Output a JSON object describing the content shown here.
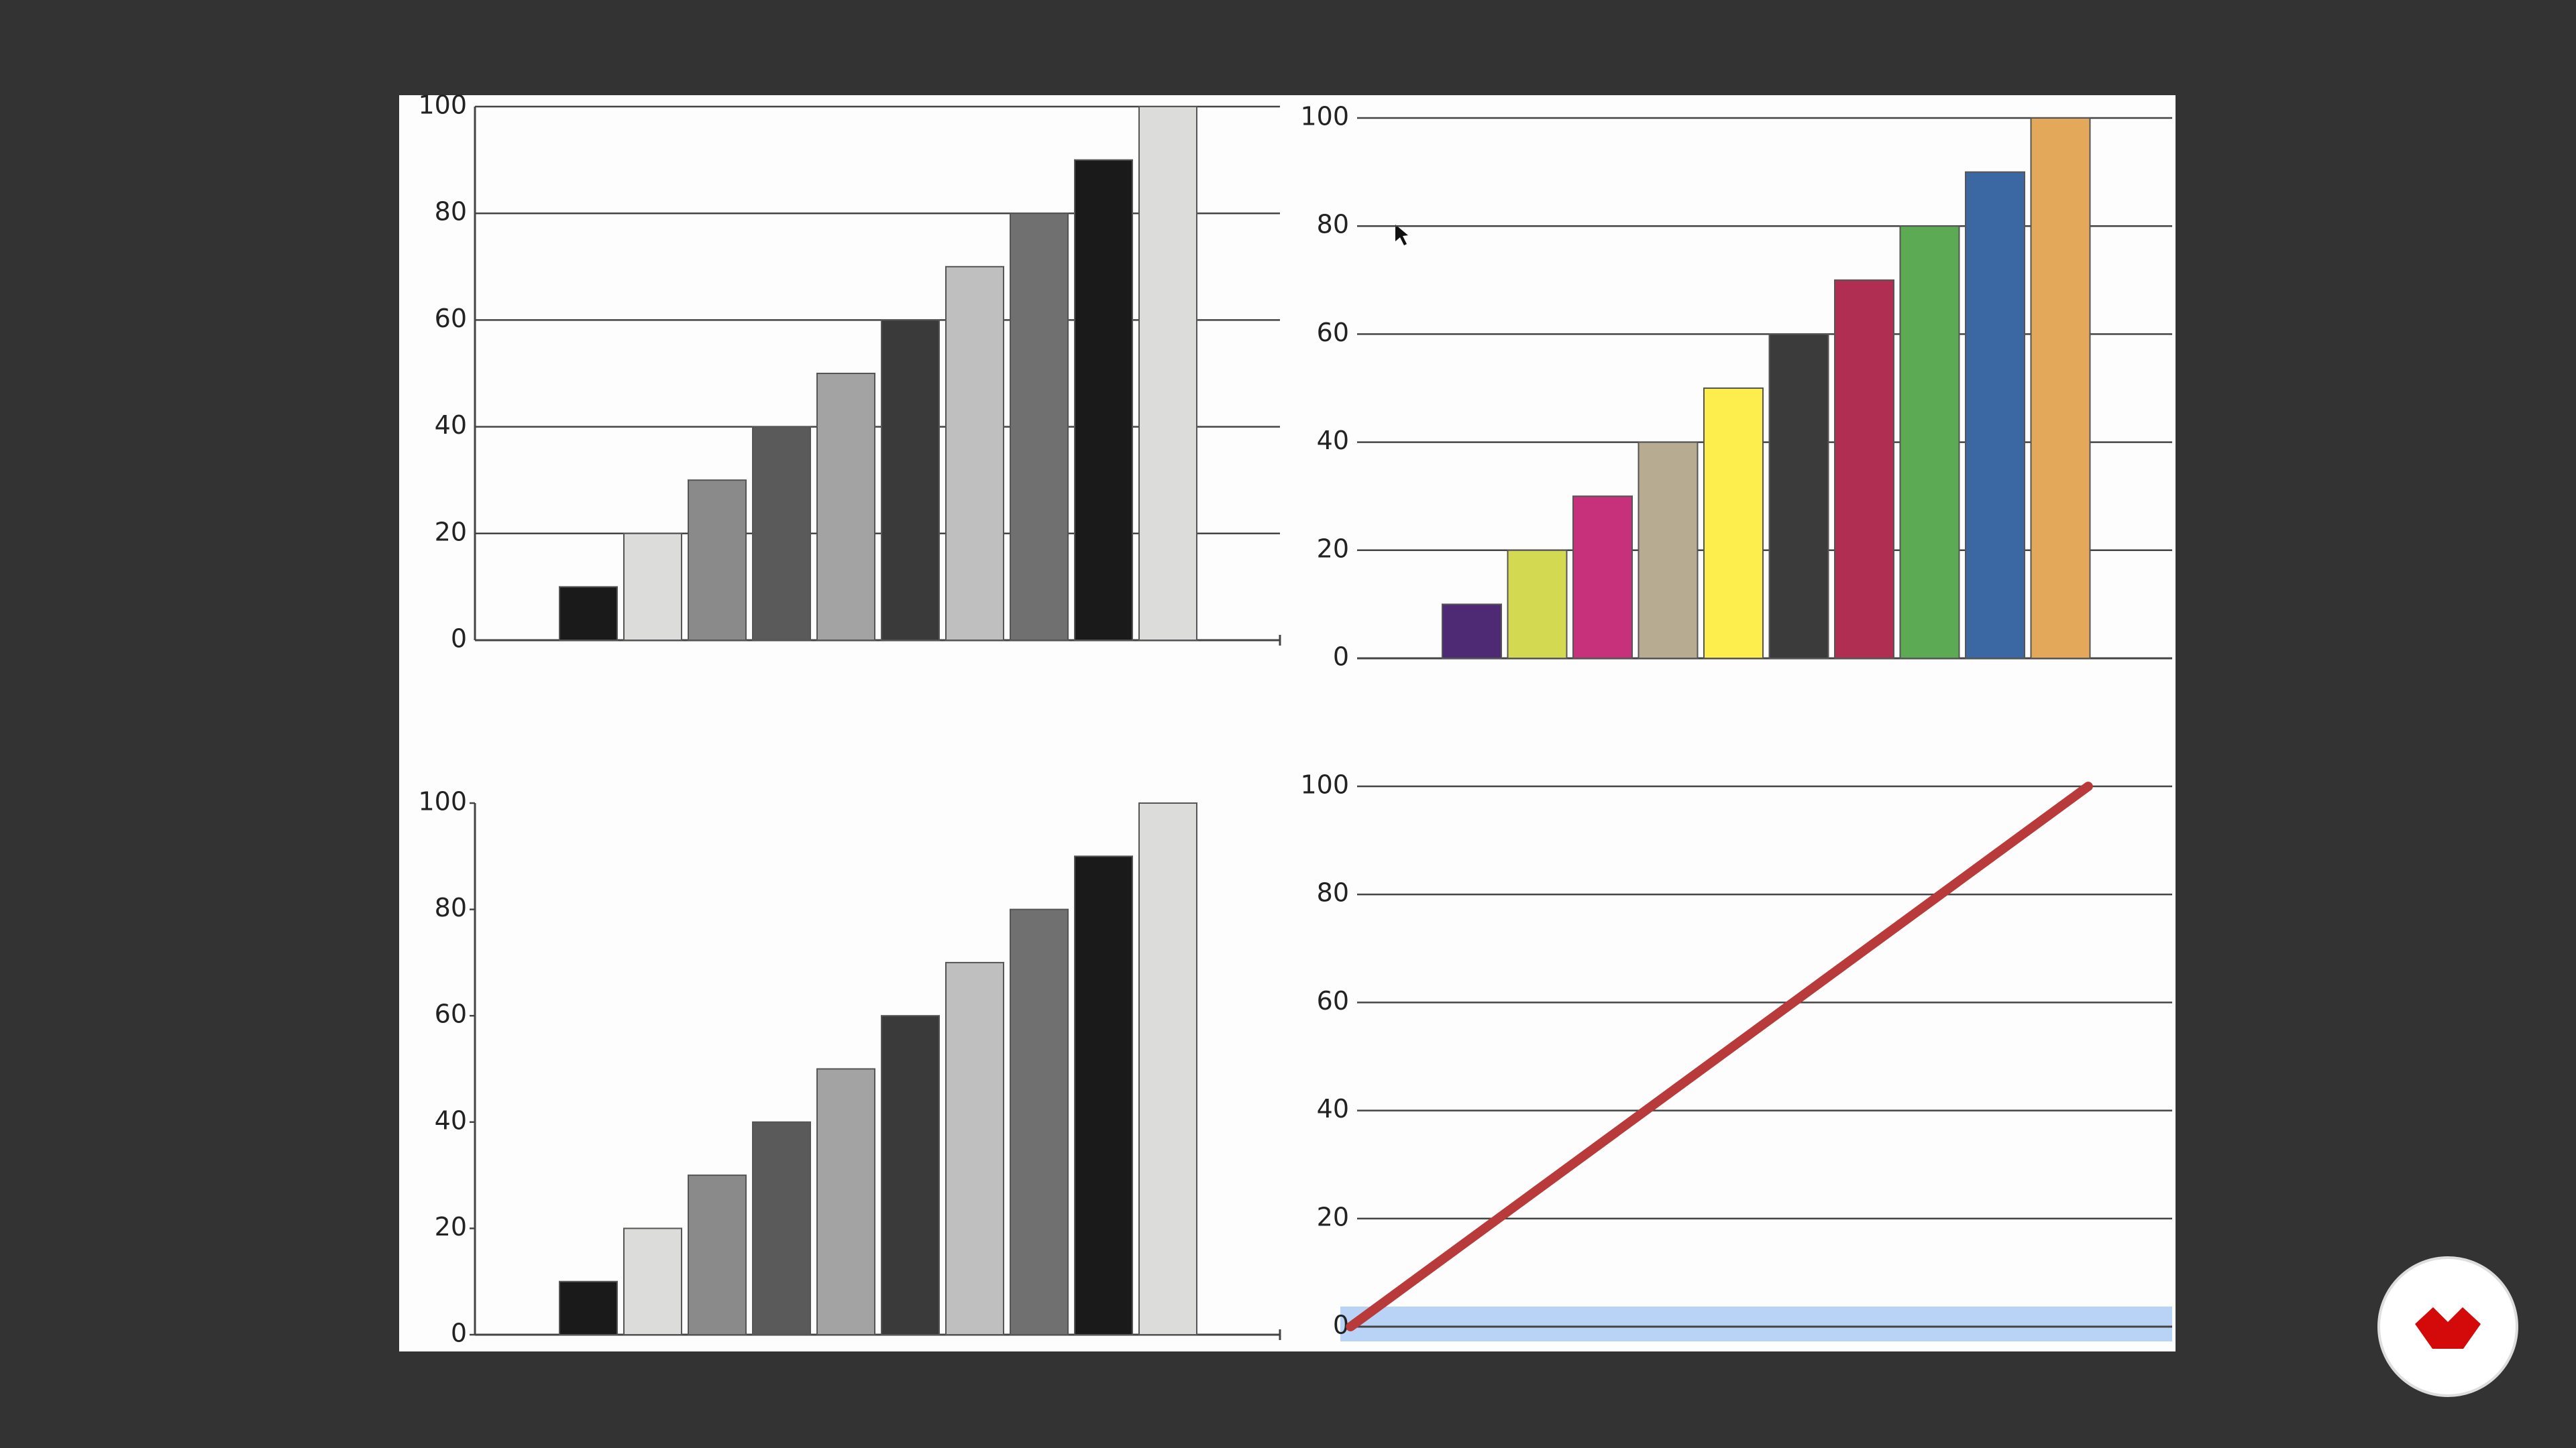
{
  "chart_data": [
    {
      "type": "bar",
      "categories": [
        null,
        null,
        null,
        null,
        null,
        null,
        null,
        null,
        null,
        null
      ],
      "values": [
        10,
        20,
        30,
        40,
        50,
        60,
        70,
        80,
        90,
        100
      ],
      "colors": [
        "#1a1a1a",
        "#dcdcda",
        "#8a8a8a",
        "#5a5a5a",
        "#a3a3a3",
        "#3a3a3a",
        "#bfbfbf",
        "#707070",
        "#1a1a1a",
        "#dcdcda"
      ],
      "ylim": [
        0,
        100
      ],
      "yticks": [
        0,
        20,
        40,
        60,
        80,
        100
      ],
      "grid": true
    },
    {
      "type": "bar",
      "categories": [
        null,
        null,
        null,
        null,
        null,
        null,
        null,
        null,
        null,
        null
      ],
      "values": [
        10,
        20,
        30,
        40,
        50,
        60,
        70,
        80,
        90,
        100
      ],
      "colors": [
        "#4e2a74",
        "#d3d951",
        "#c7317c",
        "#b7ab92",
        "#fdee4e",
        "#3b3b3b",
        "#b02e52",
        "#5daa54",
        "#3b68a3",
        "#e4a85a"
      ],
      "ylim": [
        0,
        100
      ],
      "yticks": [
        0,
        20,
        40,
        60,
        80,
        100
      ],
      "grid": true
    },
    {
      "type": "bar",
      "categories": [
        null,
        null,
        null,
        null,
        null,
        null,
        null,
        null,
        null,
        null
      ],
      "values": [
        10,
        20,
        30,
        40,
        50,
        60,
        70,
        80,
        90,
        100
      ],
      "colors": [
        "#1a1a1a",
        "#dcdcda",
        "#8a8a8a",
        "#5a5a5a",
        "#a3a3a3",
        "#3a3a3a",
        "#bfbfbf",
        "#707070",
        "#1a1a1a",
        "#dcdcda"
      ],
      "ylim": [
        0,
        100
      ],
      "yticks": [
        0,
        20,
        40,
        60,
        80,
        100
      ],
      "grid": false
    },
    {
      "type": "line",
      "categories": [
        null,
        null
      ],
      "values": [
        0,
        100
      ],
      "color": "#b83a3a",
      "ylim": [
        0,
        100
      ],
      "yticks": [
        0,
        20,
        40,
        60,
        80,
        100
      ],
      "grid": true
    }
  ]
}
